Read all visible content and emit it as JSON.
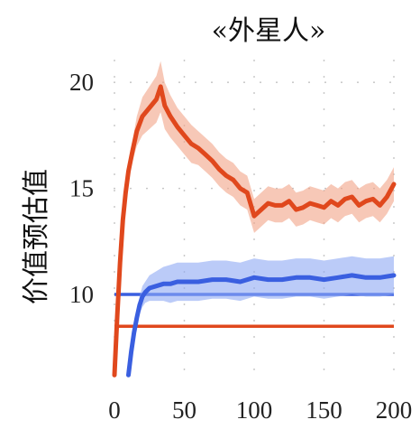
{
  "chart_data": {
    "type": "line",
    "title": "«外星人»",
    "xlabel": "",
    "ylabel": "价值预估值",
    "xlim": [
      0,
      200
    ],
    "ylim": [
      6.0,
      21.2
    ],
    "xticks": [
      0,
      50,
      100,
      150,
      200
    ],
    "yticks": [
      10,
      15,
      20
    ],
    "grid": "dotted",
    "series": [
      {
        "color": "#e0481d",
        "band_color": "#f2a487",
        "x": [
          0,
          2,
          4,
          6,
          8,
          10,
          13,
          16,
          20,
          25,
          30,
          33,
          36,
          40,
          45,
          50,
          55,
          60,
          65,
          70,
          75,
          80,
          85,
          90,
          95,
          100,
          105,
          110,
          115,
          120,
          125,
          130,
          135,
          140,
          145,
          150,
          155,
          160,
          165,
          170,
          175,
          180,
          185,
          190,
          195,
          200
        ],
        "y": [
          6.2,
          9.0,
          11.5,
          13.5,
          14.8,
          15.8,
          16.8,
          17.7,
          18.4,
          18.8,
          19.2,
          19.8,
          18.9,
          18.4,
          17.9,
          17.5,
          17.1,
          16.9,
          16.6,
          16.3,
          15.9,
          15.6,
          15.4,
          15.0,
          14.8,
          13.7,
          14.0,
          14.3,
          14.2,
          14.2,
          14.4,
          14.0,
          14.1,
          14.3,
          14.2,
          14.1,
          14.4,
          14.2,
          14.5,
          14.6,
          14.2,
          14.4,
          14.5,
          14.2,
          14.6,
          15.2
        ],
        "band_halfwidth": [
          0.0,
          0.1,
          0.2,
          0.3,
          0.4,
          0.4,
          0.5,
          0.7,
          0.9,
          1.0,
          1.1,
          1.2,
          1.1,
          1.0,
          0.9,
          0.9,
          0.9,
          0.8,
          0.8,
          0.8,
          0.8,
          0.8,
          0.8,
          0.8,
          0.8,
          0.8,
          0.8,
          0.8,
          0.8,
          0.8,
          0.8,
          0.8,
          0.8,
          0.8,
          0.8,
          0.8,
          0.8,
          0.8,
          0.8,
          0.8,
          0.8,
          0.8,
          0.8,
          0.8,
          0.8,
          0.8
        ]
      },
      {
        "color": "#3a5fe0",
        "band_color": "#8ea8f3",
        "x": [
          10,
          12,
          14,
          16,
          18,
          20,
          22,
          25,
          30,
          35,
          40,
          45,
          50,
          60,
          70,
          80,
          90,
          100,
          110,
          120,
          130,
          140,
          150,
          160,
          170,
          180,
          190,
          200
        ],
        "y": [
          6.2,
          7.3,
          8.2,
          8.9,
          9.5,
          9.9,
          10.1,
          10.3,
          10.4,
          10.5,
          10.5,
          10.6,
          10.6,
          10.6,
          10.7,
          10.7,
          10.6,
          10.8,
          10.7,
          10.7,
          10.8,
          10.8,
          10.7,
          10.8,
          10.9,
          10.8,
          10.8,
          10.9
        ],
        "band_halfwidth": [
          0.0,
          0.1,
          0.2,
          0.3,
          0.4,
          0.5,
          0.5,
          0.6,
          0.7,
          0.8,
          0.9,
          0.9,
          0.9,
          0.9,
          0.9,
          0.9,
          0.9,
          0.9,
          0.9,
          0.9,
          0.9,
          0.9,
          0.9,
          0.9,
          0.9,
          0.9,
          0.9,
          0.9
        ]
      }
    ],
    "reference_lines": [
      {
        "color": "#3a5fe0",
        "y": 10.0
      },
      {
        "color": "#e0481d",
        "y": 8.5
      }
    ]
  }
}
